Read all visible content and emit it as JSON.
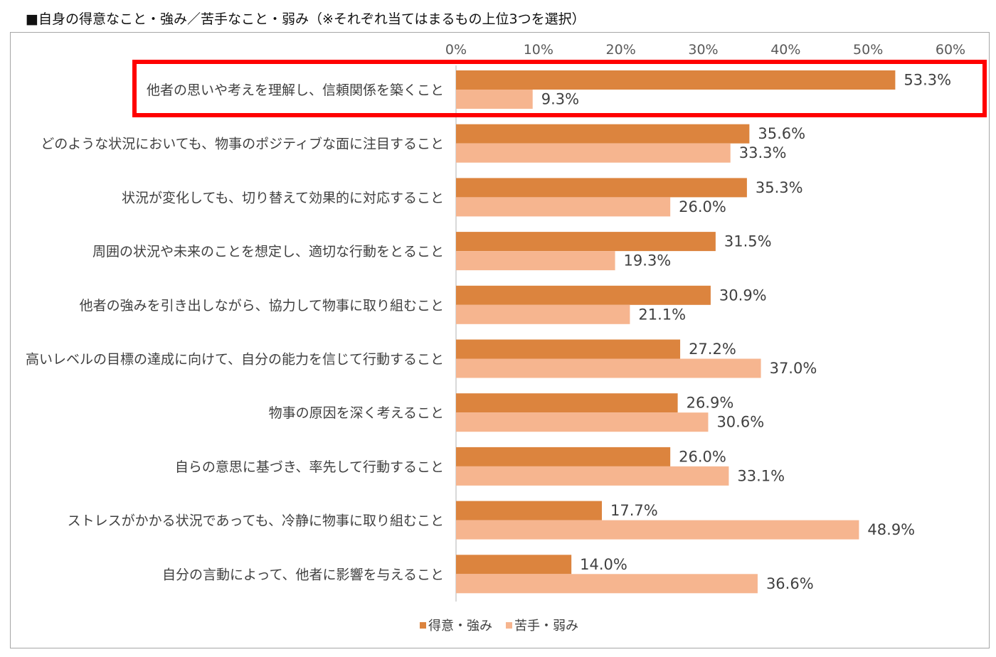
{
  "chart_data": {
    "type": "bar",
    "orientation": "horizontal",
    "title": "■自身の得意なこと・強み／苦手なこと・弱み（※それぞれ当てはまるもの上位3つを選択）",
    "categories": [
      "他者の思いや考えを理解し、信頼関係を築くこと",
      "どのような状況においても、物事のポジティブな面に注目すること",
      "状況が変化しても、切り替えて効果的に対応すること",
      "周囲の状況や未来のことを想定し、適切な行動をとること",
      "他者の強みを引き出しながら、協力して物事に取り組むこと",
      "高いレベルの目標の達成に向けて、自分の能力を信じて行動すること",
      "物事の原因を深く考えること",
      "自らの意思に基づき、率先して行動すること",
      "ストレスがかかる状況であっても、冷静に物事に取り組むこと",
      "自分の言動によって、他者に影響を与えること"
    ],
    "series": [
      {
        "name": "得意・強み",
        "color": "#dc843e",
        "values": [
          53.3,
          35.6,
          35.3,
          31.5,
          30.9,
          27.2,
          26.9,
          26.0,
          17.7,
          14.0
        ],
        "labels": [
          "53.3%",
          "35.6%",
          "35.3%",
          "31.5%",
          "30.9%",
          "27.2%",
          "26.9%",
          "26.0%",
          "17.7%",
          "14.0%"
        ]
      },
      {
        "name": "苦手・弱み",
        "color": "#f6b58f",
        "values": [
          9.3,
          33.3,
          26.0,
          19.3,
          21.1,
          37.0,
          30.6,
          33.1,
          48.9,
          36.6
        ],
        "labels": [
          "9.3%",
          "33.3%",
          "26.0%",
          "19.3%",
          "21.1%",
          "37.0%",
          "30.6%",
          "33.1%",
          "48.9%",
          "36.6%"
        ]
      }
    ],
    "xlim": [
      0,
      60
    ],
    "xticks": [
      0,
      10,
      20,
      30,
      40,
      50,
      60
    ],
    "xtick_labels": [
      "0%",
      "10%",
      "20%",
      "30%",
      "40%",
      "50%",
      "60%"
    ],
    "axis_position": "top",
    "grid": false,
    "legend_position": "bottom-center",
    "highlight": {
      "category_index": 0,
      "color": "#ff0000"
    }
  },
  "colors": {
    "axis_line": "#d9d9d9",
    "frame": "#a6a6a6"
  }
}
